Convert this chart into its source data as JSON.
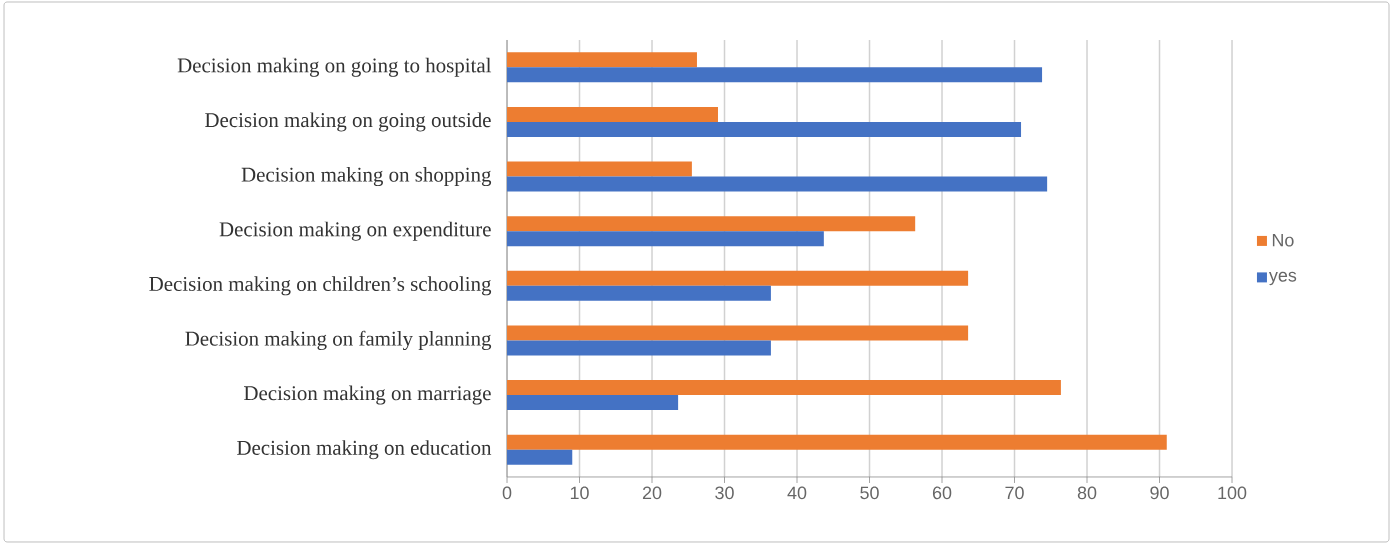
{
  "chart_data": {
    "type": "bar",
    "orientation": "horizontal",
    "categories": [
      "Decision making on going to hospital",
      "Decision making on going outside",
      "Decision making on shopping",
      "Decision making on expenditure",
      "Decision making on children’s schooling",
      "Decision making on family planning",
      "Decision making on marriage",
      "Decision making on education"
    ],
    "series": [
      {
        "name": "No",
        "color": "#ed7d31",
        "values": [
          26.2,
          29.1,
          25.5,
          56.3,
          63.6,
          63.6,
          76.4,
          91
        ]
      },
      {
        "name": "yes",
        "color": "#4472c4",
        "values": [
          73.8,
          70.9,
          74.5,
          43.7,
          36.4,
          36.4,
          23.6,
          9
        ]
      }
    ],
    "xlim": [
      0,
      100
    ],
    "xticks": [
      0,
      10,
      20,
      30,
      40,
      50,
      60,
      70,
      80,
      90,
      100
    ],
    "grid": "x",
    "legend": "right"
  }
}
